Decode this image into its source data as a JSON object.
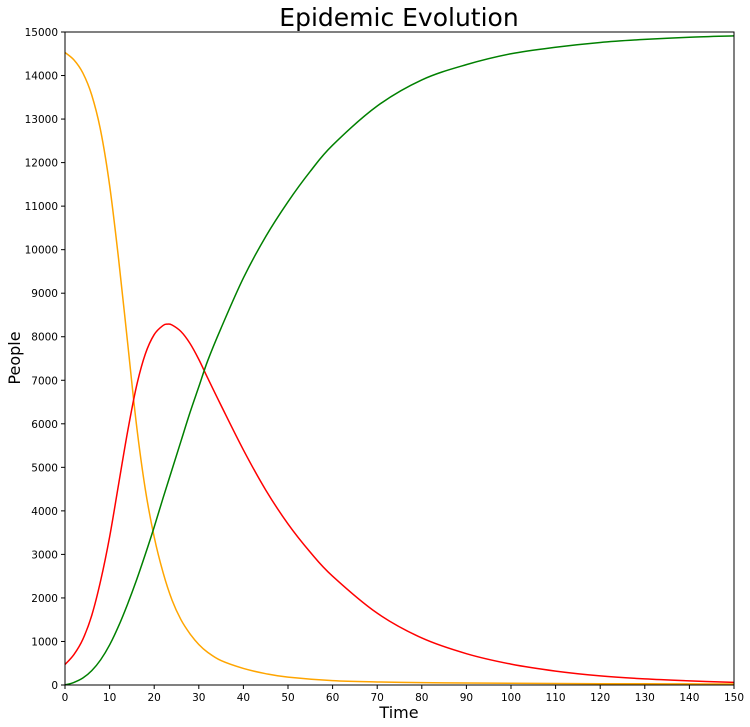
{
  "chart_data": {
    "type": "line",
    "title": "Epidemic Evolution",
    "xlabel": "Time",
    "ylabel": "People",
    "xlim": [
      0,
      150
    ],
    "ylim": [
      0,
      15000
    ],
    "xticks": [
      0,
      10,
      20,
      30,
      40,
      50,
      60,
      70,
      80,
      90,
      100,
      110,
      120,
      130,
      140,
      150
    ],
    "yticks": [
      0,
      1000,
      2000,
      3000,
      4000,
      5000,
      6000,
      7000,
      8000,
      9000,
      10000,
      11000,
      12000,
      13000,
      14000,
      15000
    ],
    "grid": false,
    "legend": false,
    "series": [
      {
        "color": "#ffa500",
        "x": [
          0,
          2,
          4,
          6,
          8,
          10,
          12,
          14,
          16,
          18,
          20,
          22,
          24,
          26,
          28,
          30,
          32,
          35,
          40,
          45,
          50,
          60,
          70,
          80,
          90,
          100,
          110,
          120,
          130,
          140,
          150
        ],
        "y": [
          14530,
          14360,
          14060,
          13550,
          12730,
          11480,
          9800,
          7900,
          6000,
          4500,
          3400,
          2580,
          1950,
          1500,
          1180,
          930,
          750,
          560,
          380,
          260,
          180,
          100,
          70,
          55,
          45,
          40,
          35,
          30,
          28,
          25,
          22
        ]
      },
      {
        "color": "#ff0000",
        "x": [
          0,
          2,
          4,
          6,
          8,
          10,
          12,
          14,
          16,
          18,
          20,
          22,
          23,
          24,
          26,
          28,
          30,
          32,
          35,
          40,
          45,
          50,
          55,
          60,
          70,
          80,
          90,
          100,
          110,
          120,
          130,
          140,
          150
        ],
        "y": [
          470,
          700,
          1050,
          1600,
          2400,
          3400,
          4600,
          5800,
          6850,
          7600,
          8050,
          8260,
          8290,
          8270,
          8120,
          7850,
          7480,
          7050,
          6420,
          5400,
          4480,
          3700,
          3050,
          2500,
          1650,
          1080,
          720,
          480,
          320,
          210,
          140,
          95,
          60
        ]
      },
      {
        "color": "#008000",
        "x": [
          0,
          2,
          4,
          6,
          8,
          10,
          12,
          14,
          16,
          18,
          20,
          22,
          24,
          26,
          28,
          30,
          32,
          35,
          40,
          45,
          50,
          55,
          60,
          70,
          80,
          90,
          100,
          110,
          120,
          130,
          140,
          150
        ],
        "y": [
          0,
          60,
          160,
          330,
          580,
          920,
          1350,
          1850,
          2400,
          3000,
          3630,
          4300,
          4950,
          5600,
          6250,
          6850,
          7450,
          8200,
          9350,
          10300,
          11100,
          11800,
          12400,
          13300,
          13900,
          14250,
          14500,
          14650,
          14760,
          14830,
          14880,
          14910
        ]
      }
    ]
  }
}
